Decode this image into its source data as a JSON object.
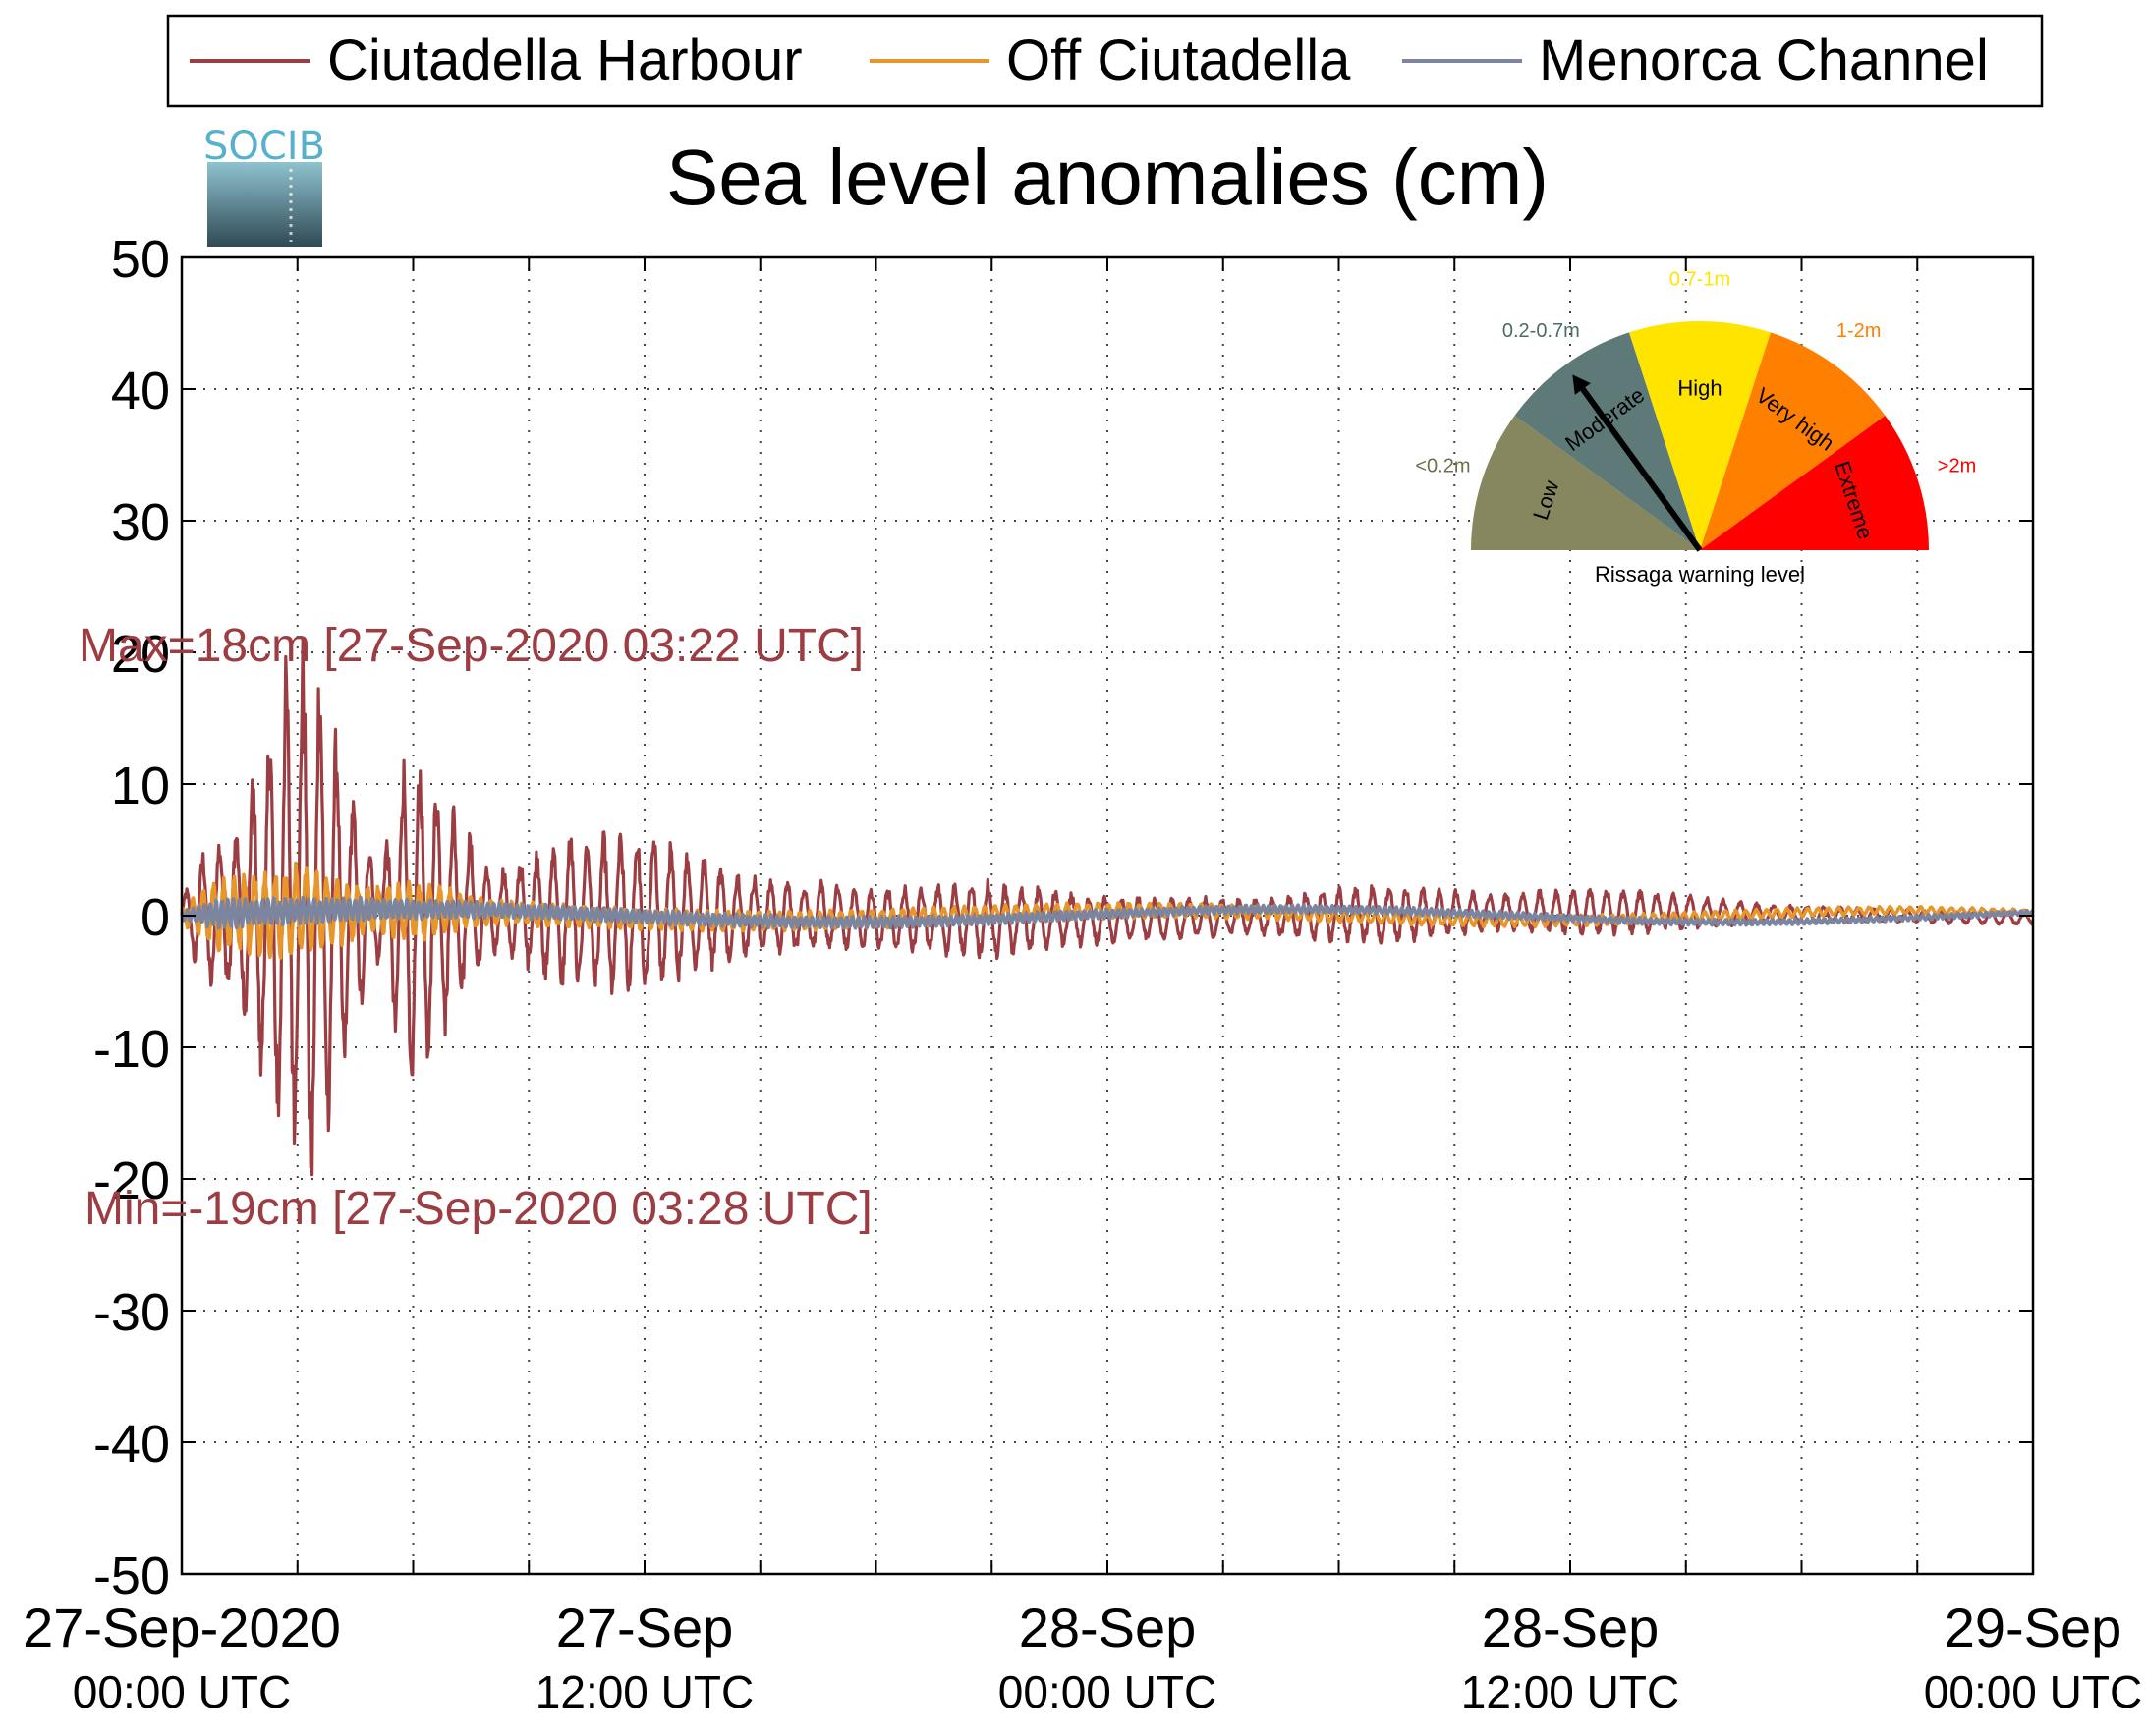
{
  "chart_data": {
    "type": "line",
    "title": "Sea level anomalies (cm)",
    "xlabel": "",
    "ylabel": "",
    "ylim": [
      -50,
      50
    ],
    "yticks": [
      50,
      40,
      30,
      20,
      10,
      0,
      -10,
      -20,
      -30,
      -40,
      -50
    ],
    "y_tick_labels": [
      "50",
      "40",
      "30",
      "20",
      "10",
      "0",
      "-10",
      "-20",
      "-30",
      "-40",
      "-50"
    ],
    "xlim": [
      "2020-09-27T00:00",
      "2020-09-29T00:00"
    ],
    "x_tick_labels": [
      {
        "date": "27-Sep-2020",
        "time": "00:00 UTC",
        "t": "2020-09-27T00:00"
      },
      {
        "date": "27-Sep",
        "time": "12:00 UTC",
        "t": "2020-09-27T12:00"
      },
      {
        "date": "28-Sep",
        "time": "00:00 UTC",
        "t": "2020-09-28T00:00"
      },
      {
        "date": "28-Sep",
        "time": "12:00 UTC",
        "t": "2020-09-28T12:00"
      },
      {
        "date": "29-Sep",
        "time": "00:00 UTC",
        "t": "2020-09-29T00:00"
      }
    ],
    "grid": true,
    "legend_position": "top",
    "series": [
      {
        "name": "Ciutadella Harbour",
        "color": "#9b3d42",
        "envelope": [
          {
            "t": "2020-09-27T00:00",
            "a": 1
          },
          {
            "t": "2020-09-27T00:30",
            "a": 4
          },
          {
            "t": "2020-09-27T01:30",
            "a": 6
          },
          {
            "t": "2020-09-27T02:40",
            "a": 16
          },
          {
            "t": "2020-09-27T03:25",
            "a": 18
          },
          {
            "t": "2020-09-27T04:20",
            "a": 8
          },
          {
            "t": "2020-09-27T05:10",
            "a": 3
          },
          {
            "t": "2020-09-27T05:50",
            "a": 11
          },
          {
            "t": "2020-09-27T06:50",
            "a": 8
          },
          {
            "t": "2020-09-27T08:00",
            "a": 2.5
          },
          {
            "t": "2020-09-27T10:00",
            "a": 5
          },
          {
            "t": "2020-09-27T12:00",
            "a": 5
          },
          {
            "t": "2020-09-27T15:00",
            "a": 2.5
          },
          {
            "t": "2020-09-27T18:00",
            "a": 2
          },
          {
            "t": "2020-09-27T21:00",
            "a": 2.5
          },
          {
            "t": "2020-09-28T00:00",
            "a": 1.5
          },
          {
            "t": "2020-09-28T04:00",
            "a": 1.2
          },
          {
            "t": "2020-09-28T07:00",
            "a": 2
          },
          {
            "t": "2020-09-28T10:00",
            "a": 1.2
          },
          {
            "t": "2020-09-28T13:00",
            "a": 1.6
          },
          {
            "t": "2020-09-28T17:00",
            "a": 0.6
          },
          {
            "t": "2020-09-28T21:00",
            "a": 0.4
          },
          {
            "t": "2020-09-29T00:00",
            "a": 0.4
          }
        ]
      },
      {
        "name": "Off Ciutadella",
        "color": "#e8952a",
        "envelope": [
          {
            "t": "2020-09-27T00:00",
            "a": 0.5
          },
          {
            "t": "2020-09-27T01:00",
            "a": 2.5
          },
          {
            "t": "2020-09-27T03:00",
            "a": 3
          },
          {
            "t": "2020-09-27T05:00",
            "a": 1.5
          },
          {
            "t": "2020-09-27T06:00",
            "a": 2
          },
          {
            "t": "2020-09-27T08:00",
            "a": 0.8
          },
          {
            "t": "2020-09-27T12:00",
            "a": 0.7
          },
          {
            "t": "2020-09-28T00:00",
            "a": 0.5
          },
          {
            "t": "2020-09-29T00:00",
            "a": 0.2
          }
        ]
      },
      {
        "name": "Menorca Channel",
        "color": "#7b85a0",
        "envelope": [
          {
            "t": "2020-09-27T00:00",
            "a": 0.3
          },
          {
            "t": "2020-09-27T01:00",
            "a": 1
          },
          {
            "t": "2020-09-27T04:00",
            "a": 0.8
          },
          {
            "t": "2020-09-27T08:00",
            "a": 0.5
          },
          {
            "t": "2020-09-28T00:00",
            "a": 0.3
          },
          {
            "t": "2020-09-29T00:00",
            "a": 0.15
          }
        ]
      }
    ],
    "annotations": {
      "max": "Max=18cm [27-Sep-2020 03:22 UTC]",
      "min": "Min=-19cm [27-Sep-2020 03:28 UTC]",
      "max_value": 18,
      "min_value": -19
    }
  },
  "logo": {
    "text": "SOCIB"
  },
  "gauge": {
    "title": "Rissaga warning level",
    "needle_level": "Moderate",
    "sectors": [
      {
        "name": "Low",
        "range": "<0.2m",
        "color": "#86865f"
      },
      {
        "name": "Moderate",
        "range": "0.2-0.7m",
        "color": "#5e7a78"
      },
      {
        "name": "High",
        "range": "0.7-1m",
        "color": "#ffe400"
      },
      {
        "name": "Very high",
        "range": "1-2m",
        "color": "#ff7f00"
      },
      {
        "name": "Extreme",
        "range": ">2m",
        "color": "#ff0000"
      }
    ]
  }
}
